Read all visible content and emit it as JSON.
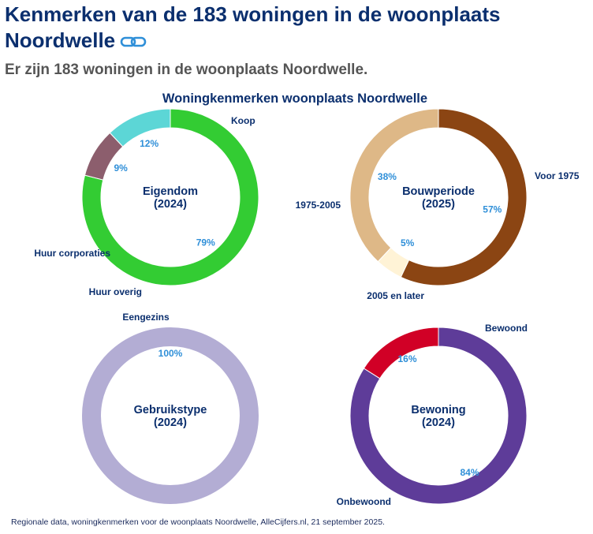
{
  "header": {
    "title": "Kenmerken van de 183 woningen in de woonplaats Noordwelle",
    "link_icon": "link-icon",
    "subtitle": "Er zijn 183 woningen in de woonplaats Noordwelle."
  },
  "chart_data": {
    "type": "donut",
    "title": "Woningkenmerken woonplaats Noordwelle",
    "charts": [
      {
        "center": [
          "Eigendom",
          "(2024)"
        ],
        "segments": [
          {
            "label": "Koop",
            "value": 79,
            "pct_label": "79%",
            "color": "#33cc33"
          },
          {
            "label": "Huur overig",
            "value": 9,
            "pct_label": "9%",
            "color": "#8c5e6d"
          },
          {
            "label": "Huur corporaties",
            "value": 12,
            "pct_label": "12%",
            "color": "#5cd6d6"
          }
        ]
      },
      {
        "center": [
          "Bouwperiode",
          "(2025)"
        ],
        "segments": [
          {
            "label": "Voor 1975",
            "value": 57,
            "pct_label": "57%",
            "color": "#8b4513"
          },
          {
            "label": "2005 en later",
            "value": 5,
            "pct_label": "5%",
            "color": "#fff3d6"
          },
          {
            "label": "1975-2005",
            "value": 38,
            "pct_label": "38%",
            "color": "#deb887"
          }
        ]
      },
      {
        "center": [
          "Gebruikstype",
          "(2024)"
        ],
        "segments": [
          {
            "label": "Eengezins",
            "value": 100,
            "pct_label": "100%",
            "color": "#b3add4"
          }
        ]
      },
      {
        "center": [
          "Bewoning",
          "(2024)"
        ],
        "segments": [
          {
            "label": "Bewoond",
            "value": 84,
            "pct_label": "84%",
            "color": "#5e3c99"
          },
          {
            "label": "Onbewoond",
            "value": 16,
            "pct_label": "16%",
            "color": "#d10026"
          }
        ]
      }
    ],
    "colors": {
      "center_text": "#0b2f6e",
      "outside_label": "#0b2f6e",
      "pct_label": "#2f8fd8"
    }
  },
  "footer": {
    "source": "Regionale data, woningkenmerken voor de woonplaats Noordwelle, AlleCijfers.nl, 21 september 2025."
  }
}
